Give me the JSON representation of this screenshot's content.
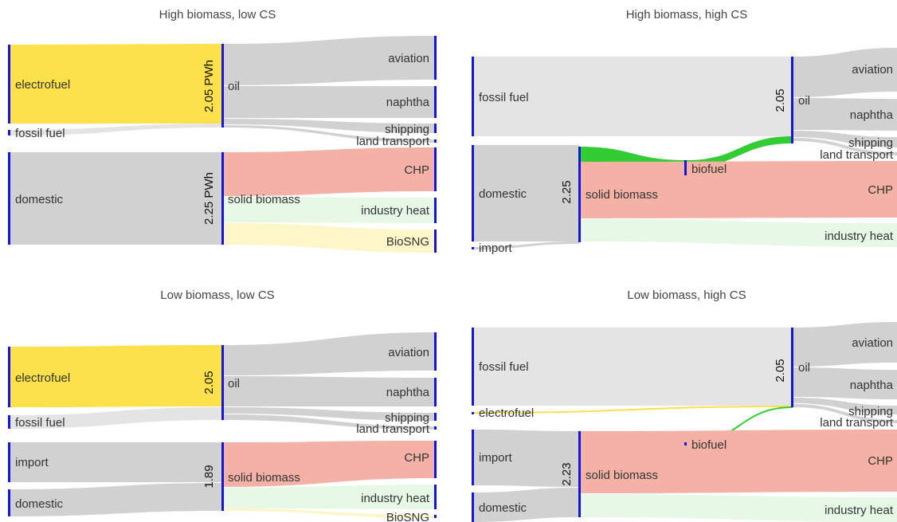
{
  "colors": {
    "node_bar": "#1515d8",
    "electrofuel": "#fde14a",
    "fossil_fuel": "#e4e4e4",
    "biomass_supply": "#d1d1d1",
    "oil_use": "#d1d1d1",
    "chp": "#f4b2a6",
    "industry_heat": "#e7f9e6",
    "biosng": "#fcf6c9",
    "biofuel": "#33cc33"
  },
  "panels": [
    {
      "title": "High biomass, low CS",
      "nodes": {
        "electrofuel": "electrofuel",
        "fossil_fuel": "fossil fuel",
        "domestic": "domestic",
        "oil": "oil",
        "solid_biomass": "solid biomass",
        "aviation": "aviation",
        "naphtha": "naphtha",
        "shipping": "shipping",
        "land_transport": "land transport",
        "chp": "CHP",
        "industry_heat": "industry heat",
        "biosng": "BioSNG"
      },
      "oil_total": "2.05 PWh",
      "biomass_total": "2.25 PWh"
    },
    {
      "title": "High biomass, high CS",
      "nodes": {
        "fossil_fuel": "fossil fuel",
        "domestic": "domestic",
        "import": "import",
        "solid_biomass": "solid biomass",
        "biofuel": "biofuel",
        "oil": "oil",
        "aviation": "aviation",
        "naphtha": "naphtha",
        "shipping": "shipping",
        "land_transport": "land transport",
        "chp": "CHP",
        "industry_heat": "industry heat"
      },
      "oil_total": "2.05",
      "biomass_total": "2.25"
    },
    {
      "title": "Low biomass, low CS",
      "nodes": {
        "electrofuel": "electrofuel",
        "fossil_fuel": "fossil fuel",
        "import": "import",
        "domestic": "domestic",
        "oil": "oil",
        "solid_biomass": "solid biomass",
        "aviation": "aviation",
        "naphtha": "naphtha",
        "shipping": "shipping",
        "land_transport": "land transport",
        "chp": "CHP",
        "industry_heat": "industry heat",
        "biosng": "BioSNG"
      },
      "oil_total": "2.05",
      "biomass_total": "1.89"
    },
    {
      "title": "Low biomass, high CS",
      "nodes": {
        "fossil_fuel": "fossil fuel",
        "electrofuel": "electrofuel",
        "import": "import",
        "domestic": "domestic",
        "solid_biomass": "solid biomass",
        "biofuel": "biofuel",
        "oil": "oil",
        "aviation": "aviation",
        "naphtha": "naphtha",
        "shipping": "shipping",
        "land_transport": "land transport",
        "chp": "CHP",
        "industry_heat": "industry heat"
      },
      "oil_total": "2.05",
      "biomass_total": "2.23"
    }
  ]
}
